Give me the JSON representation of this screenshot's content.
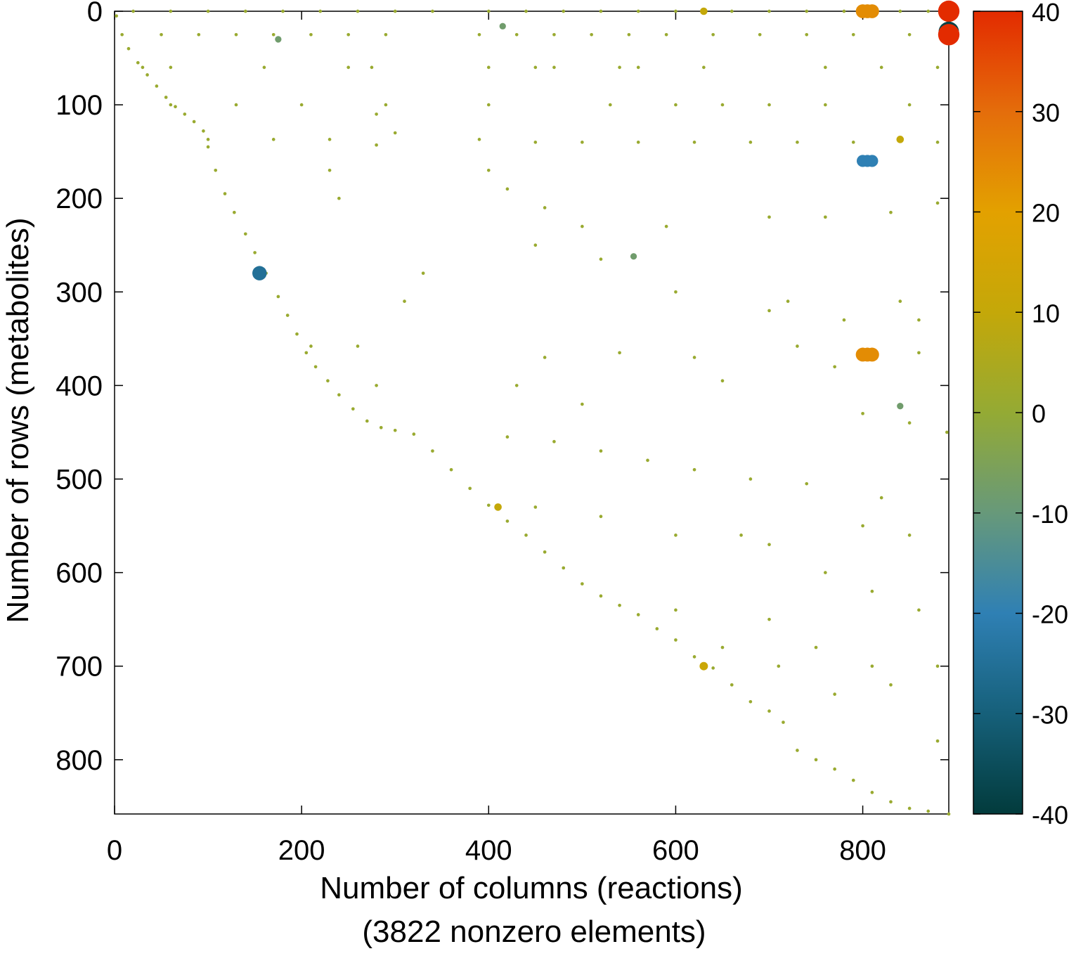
{
  "chart_data": {
    "type": "scatter",
    "xlabel": "Number of columns (reactions)",
    "note": "(3822 nonzero elements)",
    "ylabel": "Number of rows (metabolites)",
    "xlim": [
      0,
      892
    ],
    "ylim": [
      0,
      858
    ],
    "y_inverted": true,
    "xticks": [
      0,
      200,
      400,
      600,
      800
    ],
    "yticks": [
      0,
      100,
      200,
      300,
      400,
      500,
      600,
      700,
      800
    ],
    "colorbar": {
      "lim": [
        -40,
        40
      ],
      "ticks": [
        -40,
        -30,
        -20,
        -10,
        0,
        10,
        20,
        30,
        40
      ],
      "colors": [
        "#023b3c",
        "#16607a",
        "#2f80b4",
        "#67997a",
        "#94aa34",
        "#c4a809",
        "#e3a100",
        "#e46d0b",
        "#e32b00"
      ]
    },
    "x": [
      2,
      8,
      15,
      25,
      35,
      45,
      55,
      65,
      75,
      85,
      95,
      100,
      108,
      118,
      128,
      140,
      150,
      162,
      175,
      185,
      195,
      205,
      215,
      228,
      240,
      255,
      270,
      285,
      300,
      320,
      340,
      360,
      380,
      400,
      420,
      440,
      460,
      480,
      500,
      520,
      540,
      560,
      580,
      600,
      620,
      640,
      660,
      680,
      700,
      715,
      730,
      750,
      770,
      790,
      810,
      830,
      850,
      870,
      892,
      20,
      60,
      100,
      140,
      180,
      220,
      260,
      300,
      340,
      400,
      440,
      480,
      520,
      560,
      600,
      660,
      700,
      740,
      780,
      840,
      870,
      50,
      90,
      130,
      170,
      210,
      250,
      290,
      390,
      430,
      470,
      510,
      550,
      590,
      640,
      690,
      740,
      790,
      850,
      30,
      60,
      160,
      250,
      275,
      400,
      450,
      470,
      540,
      560,
      630,
      760,
      820,
      880,
      60,
      130,
      200,
      290,
      400,
      530,
      600,
      650,
      700,
      760,
      850,
      100,
      170,
      230,
      280,
      390,
      450,
      500,
      560,
      620,
      680,
      730,
      790,
      880,
      280,
      300,
      400,
      420,
      230,
      240,
      460,
      500,
      590,
      700,
      760,
      830,
      880,
      330,
      450,
      520,
      600,
      700,
      780,
      860,
      310,
      720,
      840,
      210,
      260,
      460,
      540,
      620,
      730,
      770,
      860,
      650,
      430,
      280,
      500,
      800,
      850,
      420,
      470,
      520,
      570,
      620,
      680,
      740,
      820,
      890,
      450,
      520,
      600,
      670,
      700,
      800,
      850,
      760,
      810,
      860,
      700,
      600,
      650,
      750,
      810,
      880,
      770,
      830,
      880,
      710,
      800,
      805,
      810,
      800,
      805,
      810,
      800,
      805,
      810,
      892,
      892,
      892,
      630,
      840,
      155,
      630,
      410,
      175,
      840,
      555,
      155,
      415
    ],
    "y": [
      5,
      25,
      40,
      55,
      68,
      80,
      92,
      102,
      110,
      118,
      128,
      145,
      170,
      195,
      215,
      238,
      258,
      280,
      305,
      325,
      345,
      365,
      380,
      395,
      410,
      425,
      438,
      445,
      448,
      452,
      470,
      490,
      510,
      528,
      545,
      560,
      578,
      595,
      612,
      625,
      635,
      645,
      660,
      672,
      690,
      702,
      720,
      738,
      748,
      760,
      790,
      800,
      810,
      822,
      835,
      845,
      852,
      855,
      858,
      0,
      0,
      0,
      0,
      0,
      0,
      0,
      0,
      0,
      0,
      0,
      0,
      0,
      0,
      0,
      0,
      0,
      0,
      0,
      0,
      0,
      25,
      25,
      25,
      25,
      25,
      25,
      25,
      25,
      25,
      25,
      25,
      25,
      25,
      25,
      25,
      25,
      25,
      25,
      60,
      60,
      60,
      60,
      60,
      60,
      60,
      60,
      60,
      60,
      60,
      60,
      60,
      60,
      100,
      100,
      100,
      100,
      100,
      100,
      100,
      100,
      100,
      100,
      100,
      137,
      137,
      137,
      143,
      137,
      140,
      140,
      140,
      140,
      140,
      140,
      140,
      140,
      110,
      130,
      170,
      190,
      170,
      200,
      210,
      230,
      230,
      220,
      220,
      215,
      205,
      280,
      250,
      265,
      300,
      320,
      330,
      330,
      310,
      310,
      310,
      358,
      358,
      370,
      365,
      370,
      358,
      380,
      365,
      395,
      400,
      400,
      420,
      430,
      440,
      455,
      460,
      470,
      480,
      490,
      500,
      505,
      520,
      450,
      530,
      540,
      560,
      560,
      570,
      550,
      560,
      600,
      620,
      640,
      650,
      640,
      680,
      680,
      700,
      700,
      730,
      720,
      780,
      700,
      0,
      0,
      0,
      367,
      367,
      367,
      160,
      160,
      160,
      0,
      22,
      25,
      0,
      137,
      283,
      700,
      530,
      30,
      422,
      262,
      280,
      16
    ],
    "values": [
      1,
      1,
      1,
      1,
      1,
      1,
      1,
      1,
      1,
      1,
      1,
      1,
      1,
      1,
      1,
      1,
      1,
      1,
      1,
      1,
      1,
      1,
      1,
      1,
      1,
      1,
      1,
      1,
      1,
      1,
      1,
      1,
      1,
      1,
      1,
      1,
      1,
      1,
      1,
      1,
      1,
      1,
      1,
      1,
      1,
      1,
      1,
      1,
      1,
      1,
      1,
      1,
      1,
      1,
      1,
      1,
      1,
      1,
      1,
      1,
      1,
      1,
      1,
      1,
      1,
      1,
      1,
      1,
      1,
      1,
      1,
      1,
      1,
      1,
      1,
      1,
      1,
      1,
      1,
      1,
      1,
      1,
      1,
      1,
      1,
      1,
      1,
      1,
      1,
      1,
      1,
      1,
      1,
      1,
      1,
      1,
      1,
      1,
      1,
      1,
      1,
      1,
      1,
      1,
      1,
      1,
      1,
      1,
      1,
      1,
      1,
      1,
      1,
      1,
      1,
      1,
      1,
      1,
      1,
      1,
      1,
      1,
      1,
      1,
      1,
      1,
      1,
      1,
      1,
      1,
      1,
      1,
      1,
      1,
      1,
      1,
      1,
      1,
      1,
      1,
      1,
      1,
      1,
      1,
      1,
      1,
      1,
      1,
      1,
      1,
      1,
      1,
      1,
      1,
      1,
      1,
      1,
      1,
      1,
      1,
      1,
      1,
      1,
      1,
      1,
      1,
      1,
      1,
      1,
      1,
      1,
      1,
      1,
      1,
      1,
      1,
      1,
      1,
      1,
      1,
      1,
      1,
      1,
      1,
      1,
      1,
      1,
      1,
      1,
      1,
      1,
      1,
      1,
      1,
      1,
      1,
      1,
      1,
      1,
      1,
      1,
      1,
      24,
      24,
      24,
      24,
      24,
      24,
      -20,
      -20,
      -20,
      40,
      -38,
      40,
      10,
      10,
      12,
      12,
      10,
      -8,
      -8,
      -8,
      -25,
      -8
    ]
  }
}
